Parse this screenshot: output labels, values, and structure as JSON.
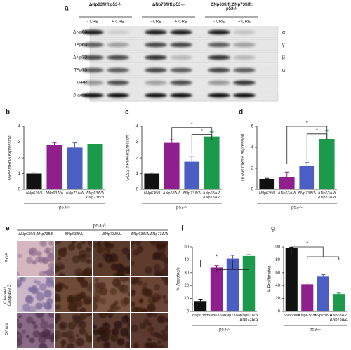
{
  "panel_labels": [
    "a",
    "b",
    "c",
    "d",
    "e",
    "f",
    "g"
  ],
  "blot": {
    "column_headers": [
      "ΔNp63fl/fl;p53-/-",
      "ΔNp73fl/fl;p53-/-",
      "ΔNp63fl/fl;ΔNp73fl/fl;\np53-/-"
    ],
    "lanes": [
      "- CRE",
      "+ CRE",
      "- CRE",
      "+ CRE",
      "- CRE",
      "+ CRE"
    ],
    "rows": [
      "ΔNp63",
      "TAp63",
      "ΔNp73",
      "TAp73",
      "IAPP",
      "β-actin"
    ],
    "isoforms": [
      "α",
      "γ",
      "β",
      "α"
    ]
  },
  "histology": {
    "group_label": "p53-/-",
    "column_headers": [
      "ΔNp63fl/fl;ΔNp73fl/fl",
      "ΔNp63Δ/Δ",
      "ΔNp73Δ/Δ",
      "ΔNp63Δ/Δ;ΔNp73Δ/Δ"
    ],
    "rows": [
      "ROS",
      "Cleaved\nCaspase 3",
      "PCNA"
    ]
  },
  "chart_data": [
    {
      "type": "bar",
      "ylabel": "IAPP mRNA expression",
      "group_label": "p53-/-",
      "categories": [
        "ΔNp63fl/fl",
        "ΔNp63Δ/Δ",
        "ΔNp73Δ/Δ",
        "ΔNp63Δ/Δ\nΔNp73Δ/Δ"
      ],
      "values": [
        1.0,
        2.8,
        2.65,
        2.85
      ],
      "errors": [
        0.05,
        0.15,
        0.3,
        0.15
      ],
      "colors": [
        "#111111",
        "#8e1f8c",
        "#4b5ec4",
        "#1b9a4c"
      ],
      "ylim": [
        0,
        4
      ],
      "yticks": [
        0,
        1,
        2,
        3,
        4
      ],
      "annotations": []
    },
    {
      "type": "bar",
      "ylabel": "GLS2 mRNA expression",
      "group_label": "p53-/-",
      "categories": [
        "ΔNp63fl/fl",
        "ΔNp63Δ/Δ",
        "ΔNp73Δ/Δ",
        "ΔNp63Δ/Δ\nΔNp73Δ/Δ"
      ],
      "values": [
        1.0,
        2.95,
        1.75,
        3.35
      ],
      "errors": [
        0.05,
        0.2,
        0.35,
        0.3
      ],
      "colors": [
        "#111111",
        "#8e1f8c",
        "#4b5ec4",
        "#1b9a4c"
      ],
      "ylim": [
        0,
        4
      ],
      "yticks": [
        0,
        1,
        2,
        3,
        4
      ],
      "annotations": [
        "*",
        "*"
      ]
    },
    {
      "type": "bar",
      "ylabel": "TIGAR mRNA expression",
      "group_label": "p53-/-",
      "categories": [
        "ΔNp63fl/fl",
        "ΔNp63Δ/Δ",
        "ΔNp73Δ/Δ",
        "ΔNp63Δ/Δ\nΔNp73Δ/Δ"
      ],
      "values": [
        1.0,
        1.2,
        2.2,
        4.8
      ],
      "errors": [
        0.05,
        0.45,
        0.35,
        0.8
      ],
      "colors": [
        "#111111",
        "#8e1f8c",
        "#4b5ec4",
        "#1b9a4c"
      ],
      "ylim": [
        0,
        6
      ],
      "yticks": [
        0,
        2,
        4,
        6
      ],
      "annotations": [
        "*",
        "*"
      ]
    },
    {
      "type": "bar",
      "ylabel": "% Apoptosis",
      "group_label": "p53-/-",
      "categories": [
        "ΔNp63fl/fl",
        "ΔNp63Δ/Δ",
        "ΔNp73Δ/Δ",
        "ΔNp63Δ/Δ\nΔNp73Δ/Δ"
      ],
      "values": [
        8,
        34,
        41,
        43
      ],
      "errors": [
        1,
        1.5,
        2.5,
        1
      ],
      "colors": [
        "#111111",
        "#8e1f8c",
        "#4b5ec4",
        "#1b9a4c"
      ],
      "ylim": [
        0,
        50
      ],
      "yticks": [
        0,
        10,
        20,
        30,
        40,
        50
      ],
      "annotations": [
        "*"
      ]
    },
    {
      "type": "bar",
      "ylabel": "% Proliferation",
      "group_label": "p53-/-",
      "categories": [
        "ΔNp63fl/fl",
        "ΔNp63Δ/Δ",
        "ΔNp73Δ/Δ",
        "ΔNp63Δ/Δ\nΔNp73Δ/Δ"
      ],
      "values": [
        98,
        42,
        54,
        27
      ],
      "errors": [
        1.5,
        2,
        3,
        1.5
      ],
      "colors": [
        "#111111",
        "#8e1f8c",
        "#4b5ec4",
        "#1b9a4c"
      ],
      "ylim": [
        0,
        100
      ],
      "yticks": [
        0,
        20,
        40,
        60,
        80,
        100
      ],
      "annotations": [
        "*"
      ]
    }
  ]
}
